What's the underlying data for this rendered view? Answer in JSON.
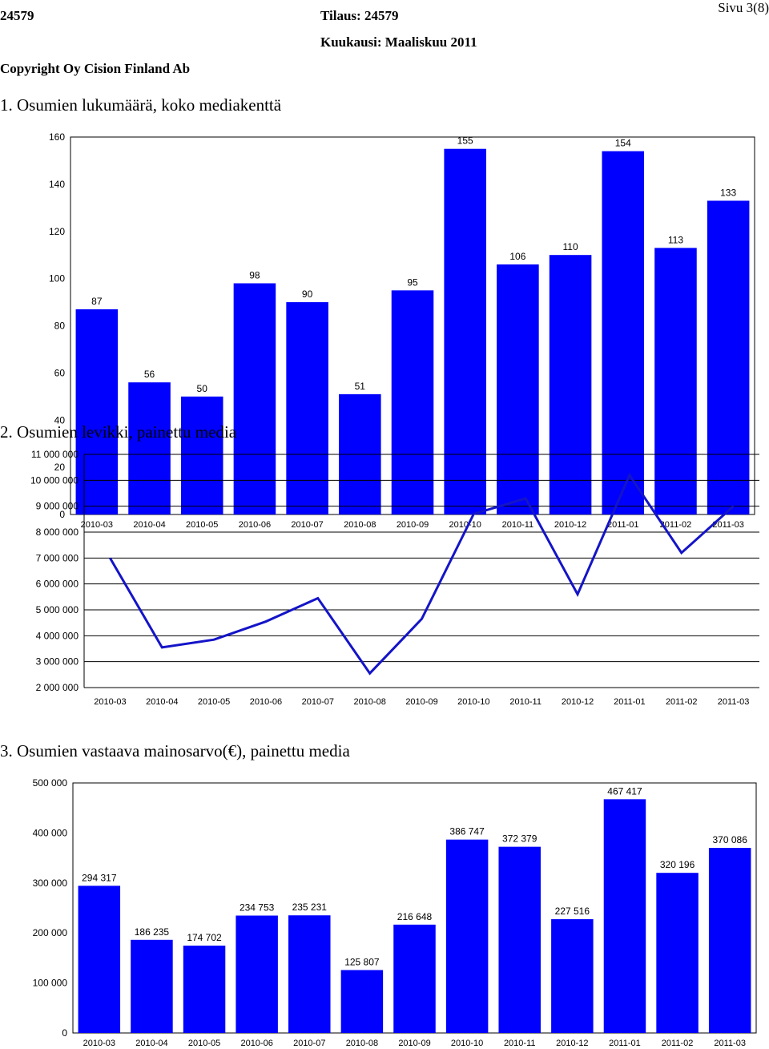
{
  "header": {
    "doc_id": "24579",
    "order": "Tilaus: 24579",
    "month": "Kuukausi: Maaliskuu 2011",
    "copyright": "Copyright Oy Cision Finland Ab",
    "page": "Sivu 3(8)"
  },
  "sections": [
    "1. Osumien lukumäärä, koko mediakenttä",
    "2. Osumien levikki, painettu media",
    "3. Osumien vastaava mainosarvo(€), painettu media"
  ],
  "chart_data": [
    {
      "type": "bar",
      "title": "1. Osumien lukumäärä, koko mediakenttä",
      "categories": [
        "2010-03",
        "2010-04",
        "2010-05",
        "2010-06",
        "2010-07",
        "2010-08",
        "2010-09",
        "2010-10",
        "2010-11",
        "2010-12",
        "2011-01",
        "2011-02",
        "2011-03"
      ],
      "values": [
        87,
        56,
        50,
        98,
        90,
        51,
        95,
        155,
        106,
        110,
        154,
        113,
        133
      ],
      "value_labels": [
        "87",
        "56",
        "50",
        "98",
        "90",
        "51",
        "95",
        "155",
        "106",
        "110",
        "154",
        "113",
        "133"
      ],
      "ylim": [
        0,
        160
      ],
      "yticks": [
        0,
        20,
        40,
        60,
        80,
        100,
        120,
        140,
        160
      ],
      "ytick_labels": [
        "0",
        "20",
        "40",
        "60",
        "80",
        "100",
        "120",
        "140",
        "160"
      ],
      "bar_color": "#0000FF",
      "grid": false
    },
    {
      "type": "line",
      "title": "2. Osumien levikki, painettu media",
      "categories": [
        "2010-03",
        "2010-04",
        "2010-05",
        "2010-06",
        "2010-07",
        "2010-08",
        "2010-09",
        "2010-10",
        "2010-11",
        "2010-12",
        "2011-01",
        "2011-02",
        "2011-03"
      ],
      "values": [
        7000000,
        3550000,
        3850000,
        4550000,
        5450000,
        2550000,
        4650000,
        8700000,
        9300000,
        5600000,
        10200000,
        7200000,
        9000000
      ],
      "ylim": [
        2000000,
        11000000
      ],
      "yticks": [
        2000000,
        3000000,
        4000000,
        5000000,
        6000000,
        7000000,
        8000000,
        9000000,
        10000000,
        11000000
      ],
      "ytick_labels": [
        "2 000 000",
        "3 000 000",
        "4 000 000",
        "5 000 000",
        "6 000 000",
        "7 000 000",
        "8 000 000",
        "9 000 000",
        "10 000 000",
        "11 000 000"
      ],
      "line_color": "#1414C8",
      "grid": true
    },
    {
      "type": "bar",
      "title": "3. Osumien vastaava mainosarvo(€), painettu media",
      "categories": [
        "2010-03",
        "2010-04",
        "2010-05",
        "2010-06",
        "2010-07",
        "2010-08",
        "2010-09",
        "2010-10",
        "2010-11",
        "2010-12",
        "2011-01",
        "2011-02",
        "2011-03"
      ],
      "values": [
        294317,
        186235,
        174702,
        234753,
        235231,
        125807,
        216648,
        386747,
        372379,
        227516,
        467417,
        320196,
        370086
      ],
      "value_labels": [
        "294 317",
        "186 235",
        "174 702",
        "234 753",
        "235 231",
        "125 807",
        "216 648",
        "386 747",
        "372 379",
        "227 516",
        "467 417",
        "320 196",
        "370 086"
      ],
      "ylim": [
        0,
        500000
      ],
      "yticks": [
        0,
        100000,
        200000,
        300000,
        400000,
        500000
      ],
      "ytick_labels": [
        "0",
        "100 000",
        "200 000",
        "300 000",
        "400 000",
        "500 000"
      ],
      "bar_color": "#0000FF",
      "grid": false
    }
  ]
}
